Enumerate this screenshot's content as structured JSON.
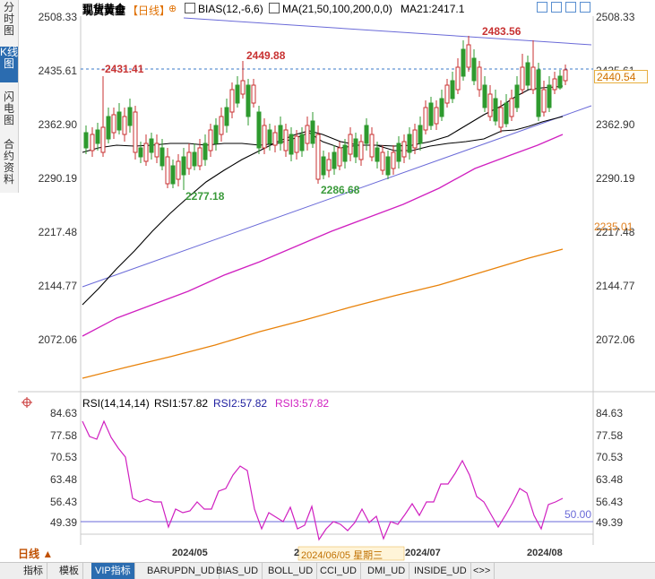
{
  "left_tabs": [
    {
      "label": "分时图",
      "active": false
    },
    {
      "label": "K线图",
      "active": true
    },
    {
      "label": "闪电图",
      "active": false
    },
    {
      "label": "合约资料",
      "active": false
    }
  ],
  "header": {
    "instrument": "现货黄金",
    "period": "【日线】",
    "bias": "BIAS(12,-6,6)",
    "ma": "MA(21,50,100,200,0,0)",
    "ma21": "MA21:2417.1"
  },
  "y_axis_labels": [
    "2508.33",
    "2435.61",
    "2362.90",
    "2290.19",
    "2217.48",
    "2144.77",
    "2072.06"
  ],
  "price_badges": {
    "current": "2440.54",
    "ma_level": "2235.01"
  },
  "annotations": [
    {
      "text": "2431.41",
      "color": "#c83232"
    },
    {
      "text": "2449.88",
      "color": "#c83232"
    },
    {
      "text": "2483.56",
      "color": "#c83232"
    },
    {
      "text": "2277.18",
      "color": "#3a9a3a"
    },
    {
      "text": "2286.68",
      "color": "#3a9a3a"
    }
  ],
  "rsi": {
    "title": "RSI(14,14,14)",
    "rsi1": "RSI1:57.82",
    "rsi2": "RSI2:57.82",
    "rsi3": "RSI3:57.82",
    "axis_labels": [
      "84.63",
      "77.58",
      "70.53",
      "63.48",
      "56.43",
      "49.39"
    ],
    "midline_label": "50.00",
    "midline": 50
  },
  "x_axis": {
    "labels": [
      "2024/05",
      "2024/07",
      "2024/08"
    ],
    "cursor_label": "2024/06/05 星期三",
    "cursor_prefix": "2"
  },
  "period_button": "日线 ▲",
  "bottom_tabs": [
    {
      "label": "指标",
      "active": false
    },
    {
      "label": "模板",
      "active": false
    },
    {
      "label": "VIP指标",
      "active": true
    },
    {
      "label": "BARUPDN_UD",
      "active": false
    },
    {
      "label": "BIAS_UD",
      "active": false
    },
    {
      "label": "BOLL_UD",
      "active": false
    },
    {
      "label": "CCI_UD",
      "active": false
    },
    {
      "label": "DMI_UD",
      "active": false
    },
    {
      "label": "INSIDE_UD",
      "active": false
    },
    {
      "label": "<>>",
      "active": false
    }
  ],
  "colors": {
    "up": "#c83232",
    "down": "#2e9a2e",
    "ma21": "#000000",
    "ma50": "#d020c0",
    "ma100": "#e8820a",
    "trendline": "#6a6ad8",
    "rsi_line": "#d020c0",
    "price_dashed": "#3a78c8"
  }
}
